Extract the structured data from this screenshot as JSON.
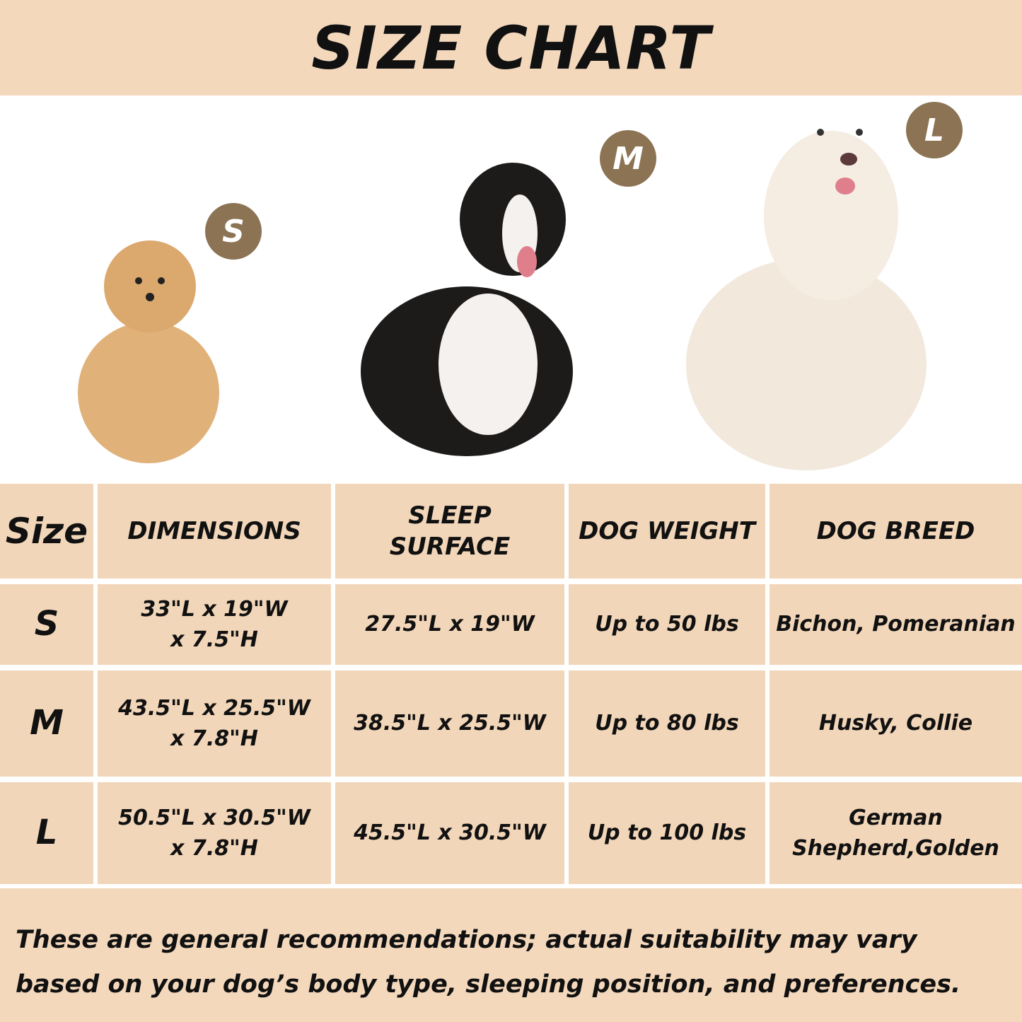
{
  "title": "SIZE CHART",
  "badges": {
    "s": "S",
    "m": "M",
    "l": "L"
  },
  "colors": {
    "band": "#f3d8bc",
    "cell": "#f2d6b9",
    "badge": "#8b7353"
  },
  "table": {
    "headers": [
      "Size",
      "DIMENSIONS",
      "SLEEP\nSURFACE",
      "DOG WEIGHT",
      "DOG BREED"
    ],
    "rows": [
      [
        "S",
        "33\"L x 19\"W\nx 7.5\"H",
        "27.5\"L x 19\"W",
        "Up to 50 lbs",
        "Bichon, Pomeranian"
      ],
      [
        "M",
        "43.5\"L x 25.5\"W\nx 7.8\"H",
        "38.5\"L x 25.5\"W",
        "Up to 80 lbs",
        "Husky, Collie"
      ],
      [
        "L",
        "50.5\"L x 30.5\"W\nx 7.8\"H",
        "45.5\"L x 30.5\"W",
        "Up to 100 lbs",
        "German\nShepherd,Golden"
      ]
    ]
  },
  "note": "These are general recommendations; actual suitability may vary based on your dog’s body type, sleeping position, and preferences."
}
